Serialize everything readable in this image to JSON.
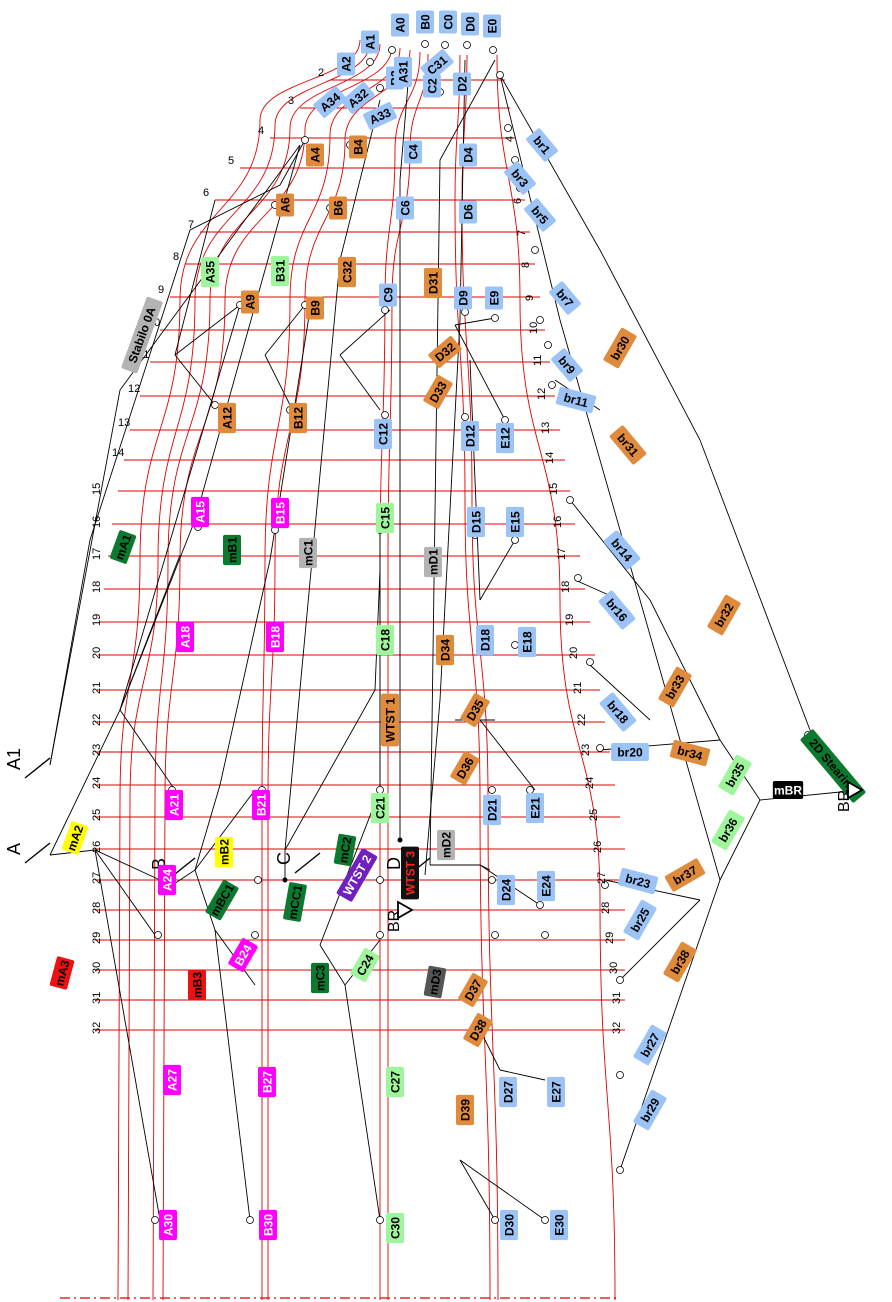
{
  "frame_numbers": [
    "2",
    "3",
    "4",
    "5",
    "6",
    "7",
    "8",
    "9",
    "10",
    "11",
    "12",
    "13",
    "14",
    "15",
    "16",
    "17",
    "18",
    "19",
    "20",
    "21",
    "22",
    "23",
    "24",
    "25",
    "26",
    "27",
    "28",
    "29",
    "30",
    "31",
    "32"
  ],
  "group_letters": [
    "A1",
    "A",
    "B",
    "C",
    "D"
  ],
  "br_mark": "BR",
  "labels": [
    {
      "text": "A0",
      "color": "#9cc3f5",
      "tc": "#000"
    },
    {
      "text": "B0",
      "color": "#9cc3f5",
      "tc": "#000"
    },
    {
      "text": "C0",
      "color": "#9cc3f5",
      "tc": "#000"
    },
    {
      "text": "D0",
      "color": "#9cc3f5",
      "tc": "#000"
    },
    {
      "text": "E0",
      "color": "#9cc3f5",
      "tc": "#000"
    },
    {
      "text": "A1",
      "color": "#9cc3f5",
      "tc": "#000"
    },
    {
      "text": "A2",
      "color": "#9cc3f5",
      "tc": "#000"
    },
    {
      "text": "B2",
      "color": "#9cc3f5",
      "tc": "#000"
    },
    {
      "text": "A31",
      "color": "#9cc3f5",
      "tc": "#000"
    },
    {
      "text": "C31",
      "color": "#9cc3f5",
      "tc": "#000"
    },
    {
      "text": "C2",
      "color": "#9cc3f5",
      "tc": "#000"
    },
    {
      "text": "D2",
      "color": "#9cc3f5",
      "tc": "#000"
    },
    {
      "text": "A34",
      "color": "#9cc3f5",
      "tc": "#000"
    },
    {
      "text": "A32",
      "color": "#9cc3f5",
      "tc": "#000"
    },
    {
      "text": "A33",
      "color": "#9cc3f5",
      "tc": "#000"
    },
    {
      "text": "A4",
      "color": "#e08a3c",
      "tc": "#000"
    },
    {
      "text": "B4",
      "color": "#e08a3c",
      "tc": "#000"
    },
    {
      "text": "C4",
      "color": "#9cc3f5",
      "tc": "#000"
    },
    {
      "text": "D4",
      "color": "#9cc3f5",
      "tc": "#000"
    },
    {
      "text": "A6",
      "color": "#e08a3c",
      "tc": "#000"
    },
    {
      "text": "B6",
      "color": "#e08a3c",
      "tc": "#000"
    },
    {
      "text": "C6",
      "color": "#9cc3f5",
      "tc": "#000"
    },
    {
      "text": "D6",
      "color": "#9cc3f5",
      "tc": "#000"
    },
    {
      "text": "A35",
      "color": "#9ff59c",
      "tc": "#000"
    },
    {
      "text": "B31",
      "color": "#9ff59c",
      "tc": "#000"
    },
    {
      "text": "C32",
      "color": "#e08a3c",
      "tc": "#000"
    },
    {
      "text": "D31",
      "color": "#e08a3c",
      "tc": "#000"
    },
    {
      "text": "A9",
      "color": "#e08a3c",
      "tc": "#000"
    },
    {
      "text": "B9",
      "color": "#e08a3c",
      "tc": "#000"
    },
    {
      "text": "C9",
      "color": "#9cc3f5",
      "tc": "#000"
    },
    {
      "text": "D9",
      "color": "#9cc3f5",
      "tc": "#000"
    },
    {
      "text": "E9",
      "color": "#9cc3f5",
      "tc": "#000"
    },
    {
      "text": "Stabilo 0A",
      "color": "#b3b3b3",
      "tc": "#000"
    },
    {
      "text": "D32",
      "color": "#e08a3c",
      "tc": "#000"
    },
    {
      "text": "D33",
      "color": "#e08a3c",
      "tc": "#000"
    },
    {
      "text": "A12",
      "color": "#e08a3c",
      "tc": "#000"
    },
    {
      "text": "B12",
      "color": "#e08a3c",
      "tc": "#000"
    },
    {
      "text": "C12",
      "color": "#9cc3f5",
      "tc": "#000"
    },
    {
      "text": "D12",
      "color": "#9cc3f5",
      "tc": "#000"
    },
    {
      "text": "E12",
      "color": "#9cc3f5",
      "tc": "#000"
    },
    {
      "text": "mA1",
      "color": "#0b7a2e",
      "tc": "#000"
    },
    {
      "text": "A15",
      "color": "#ff00ff",
      "tc": "#fff"
    },
    {
      "text": "mB1",
      "color": "#0b7a2e",
      "tc": "#000"
    },
    {
      "text": "B15",
      "color": "#ff00ff",
      "tc": "#fff"
    },
    {
      "text": "mC1",
      "color": "#b3b3b3",
      "tc": "#000"
    },
    {
      "text": "C15",
      "color": "#9ff59c",
      "tc": "#000"
    },
    {
      "text": "mD1",
      "color": "#b3b3b3",
      "tc": "#000"
    },
    {
      "text": "D15",
      "color": "#9cc3f5",
      "tc": "#000"
    },
    {
      "text": "E15",
      "color": "#9cc3f5",
      "tc": "#000"
    },
    {
      "text": "A18",
      "color": "#ff00ff",
      "tc": "#fff"
    },
    {
      "text": "B18",
      "color": "#ff00ff",
      "tc": "#fff"
    },
    {
      "text": "C18",
      "color": "#9ff59c",
      "tc": "#000"
    },
    {
      "text": "D34",
      "color": "#e08a3c",
      "tc": "#000"
    },
    {
      "text": "D18",
      "color": "#9cc3f5",
      "tc": "#000"
    },
    {
      "text": "E18",
      "color": "#9cc3f5",
      "tc": "#000"
    },
    {
      "text": "WTST 1",
      "color": "#e08a3c",
      "tc": "#000"
    },
    {
      "text": "D35",
      "color": "#e08a3c",
      "tc": "#000"
    },
    {
      "text": "D36",
      "color": "#e08a3c",
      "tc": "#000"
    },
    {
      "text": "A21",
      "color": "#ff00ff",
      "tc": "#fff"
    },
    {
      "text": "B21",
      "color": "#ff00ff",
      "tc": "#fff"
    },
    {
      "text": "C21",
      "color": "#9ff59c",
      "tc": "#000"
    },
    {
      "text": "D21",
      "color": "#9cc3f5",
      "tc": "#000"
    },
    {
      "text": "E21",
      "color": "#9cc3f5",
      "tc": "#000"
    },
    {
      "text": "mA2",
      "color": "#ffff00",
      "tc": "#000"
    },
    {
      "text": "mB2",
      "color": "#ffff00",
      "tc": "#000"
    },
    {
      "text": "mC2",
      "color": "#0b7a2e",
      "tc": "#000"
    },
    {
      "text": "mD2",
      "color": "#b3b3b3",
      "tc": "#000"
    },
    {
      "text": "WTST 3",
      "color": "#111111",
      "tc": "#ff2020"
    },
    {
      "text": "WTST 2",
      "color": "#7020c0",
      "tc": "#fff"
    },
    {
      "text": "mBC1",
      "color": "#0b7a2e",
      "tc": "#000"
    },
    {
      "text": "mCC1",
      "color": "#0b7a2e",
      "tc": "#000"
    },
    {
      "text": "A24",
      "color": "#ff00ff",
      "tc": "#fff"
    },
    {
      "text": "B24",
      "color": "#ff00ff",
      "tc": "#fff"
    },
    {
      "text": "C24",
      "color": "#9ff59c",
      "tc": "#000"
    },
    {
      "text": "D24",
      "color": "#9cc3f5",
      "tc": "#000"
    },
    {
      "text": "E24",
      "color": "#9cc3f5",
      "tc": "#000"
    },
    {
      "text": "mA3",
      "color": "#ee1111",
      "tc": "#000"
    },
    {
      "text": "mB3",
      "color": "#ee1111",
      "tc": "#000"
    },
    {
      "text": "mC3",
      "color": "#0b7a2e",
      "tc": "#000"
    },
    {
      "text": "mD3",
      "color": "#555555",
      "tc": "#000"
    },
    {
      "text": "D37",
      "color": "#e08a3c",
      "tc": "#000"
    },
    {
      "text": "D38",
      "color": "#e08a3c",
      "tc": "#000"
    },
    {
      "text": "A27",
      "color": "#ff00ff",
      "tc": "#fff"
    },
    {
      "text": "B27",
      "color": "#ff00ff",
      "tc": "#fff"
    },
    {
      "text": "C27",
      "color": "#9ff59c",
      "tc": "#000"
    },
    {
      "text": "D27",
      "color": "#9cc3f5",
      "tc": "#000"
    },
    {
      "text": "E27",
      "color": "#9cc3f5",
      "tc": "#000"
    },
    {
      "text": "D39",
      "color": "#e08a3c",
      "tc": "#000"
    },
    {
      "text": "A30",
      "color": "#ff00ff",
      "tc": "#fff"
    },
    {
      "text": "B30",
      "color": "#ff00ff",
      "tc": "#fff"
    },
    {
      "text": "C30",
      "color": "#9ff59c",
      "tc": "#000"
    },
    {
      "text": "D30",
      "color": "#9cc3f5",
      "tc": "#000"
    },
    {
      "text": "E30",
      "color": "#9cc3f5",
      "tc": "#000"
    },
    {
      "text": "br1",
      "color": "#9cc3f5",
      "tc": "#000"
    },
    {
      "text": "br3",
      "color": "#9cc3f5",
      "tc": "#000"
    },
    {
      "text": "br5",
      "color": "#9cc3f5",
      "tc": "#000"
    },
    {
      "text": "br7",
      "color": "#9cc3f5",
      "tc": "#000"
    },
    {
      "text": "br9",
      "color": "#9cc3f5",
      "tc": "#000"
    },
    {
      "text": "br11",
      "color": "#9cc3f5",
      "tc": "#000"
    },
    {
      "text": "br30",
      "color": "#e08a3c",
      "tc": "#000"
    },
    {
      "text": "br31",
      "color": "#e08a3c",
      "tc": "#000"
    },
    {
      "text": "br14",
      "color": "#9cc3f5",
      "tc": "#000"
    },
    {
      "text": "br16",
      "color": "#9cc3f5",
      "tc": "#000"
    },
    {
      "text": "br32",
      "color": "#e08a3c",
      "tc": "#000"
    },
    {
      "text": "br33",
      "color": "#e08a3c",
      "tc": "#000"
    },
    {
      "text": "br18",
      "color": "#9cc3f5",
      "tc": "#000"
    },
    {
      "text": "br20",
      "color": "#9cc3f5",
      "tc": "#000"
    },
    {
      "text": "br34",
      "color": "#e08a3c",
      "tc": "#000"
    },
    {
      "text": "br35",
      "color": "#9ff59c",
      "tc": "#000"
    },
    {
      "text": "2D Stearing",
      "color": "#0b7a2e",
      "tc": "#000"
    },
    {
      "text": "mBR",
      "color": "#000000",
      "tc": "#fff"
    },
    {
      "text": "br36",
      "color": "#9ff59c",
      "tc": "#000"
    },
    {
      "text": "br37",
      "color": "#e08a3c",
      "tc": "#000"
    },
    {
      "text": "br23",
      "color": "#9cc3f5",
      "tc": "#000"
    },
    {
      "text": "br25",
      "color": "#9cc3f5",
      "tc": "#000"
    },
    {
      "text": "br38",
      "color": "#e08a3c",
      "tc": "#000"
    },
    {
      "text": "br27",
      "color": "#9cc3f5",
      "tc": "#000"
    },
    {
      "text": "br29",
      "color": "#9cc3f5",
      "tc": "#000"
    }
  ]
}
